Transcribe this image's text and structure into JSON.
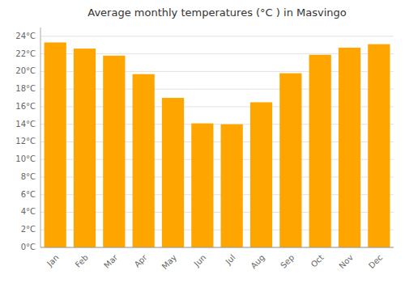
{
  "chart_data": {
    "type": "bar",
    "title": "Average monthly temperatures (°C ) in Masvingo",
    "categories": [
      "Jan",
      "Feb",
      "Mar",
      "Apr",
      "May",
      "Jun",
      "Jul",
      "Aug",
      "Sep",
      "Oct",
      "Nov",
      "Dec"
    ],
    "values": [
      23.3,
      22.6,
      21.8,
      19.7,
      17.0,
      14.1,
      14.0,
      16.5,
      19.8,
      21.9,
      22.7,
      23.1
    ],
    "color": "#FFA500",
    "ylim": [
      0,
      25
    ],
    "yticks": [
      {
        "value": 0,
        "label": "0°C"
      },
      {
        "value": 2,
        "label": "2°C"
      },
      {
        "value": 4,
        "label": "4°C"
      },
      {
        "value": 6,
        "label": "6°C"
      },
      {
        "value": 8,
        "label": "8°C"
      },
      {
        "value": 10,
        "label": "10°C"
      },
      {
        "value": 12,
        "label": "12°C"
      },
      {
        "value": 14,
        "label": "14°C"
      },
      {
        "value": 16,
        "label": "16°C"
      },
      {
        "value": 18,
        "label": "18°C"
      },
      {
        "value": 20,
        "label": "20°C"
      },
      {
        "value": 22,
        "label": "22°C"
      },
      {
        "value": 24,
        "label": "24°C"
      }
    ],
    "grid": true
  }
}
